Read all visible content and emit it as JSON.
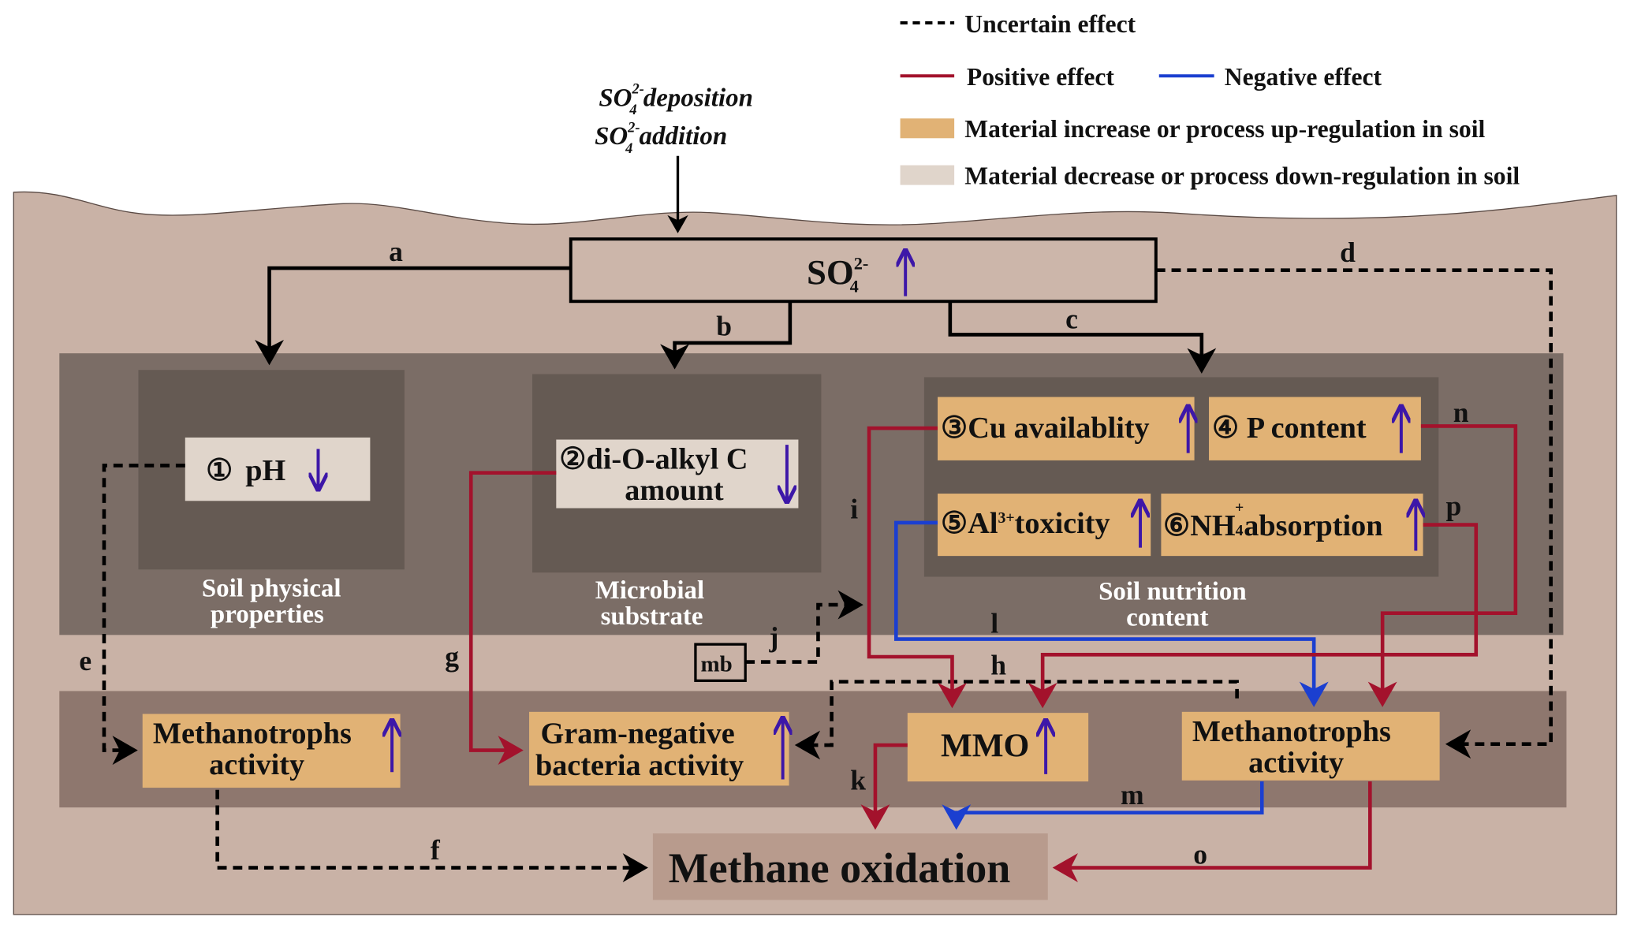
{
  "legend": {
    "uncertain": "Uncertain effect",
    "positive": "Positive effect",
    "negative": "Negative effect",
    "increase": "Material increase or process up-regulation in soil",
    "decrease": "Material decrease or process down-regulation in soil"
  },
  "inputs": {
    "so4": "SO",
    "sub": "4",
    "sup": "2-",
    "deposition": " deposition",
    "addition": " addition"
  },
  "so4_box": {
    "main": "SO",
    "sub": "4",
    "sup": "2-",
    "trend": "up"
  },
  "groups": {
    "physical": [
      "Soil physical",
      "properties"
    ],
    "substrate": [
      "Microbial",
      "substrate"
    ],
    "nutrition": [
      "Soil nutrition",
      "content"
    ]
  },
  "factors": {
    "ph": {
      "num": "①",
      "label": "pH",
      "trend": "down"
    },
    "alkyl": {
      "line1": "②di-O-alkyl C",
      "line2": "amount",
      "trend": "down"
    },
    "cu": {
      "label": "③Cu availablity",
      "trend": "up"
    },
    "p": {
      "label": "④ P content",
      "trend": "up"
    },
    "al": {
      "pre": "⑤Al",
      "sup": "3+",
      "post": "toxicity",
      "trend": "up"
    },
    "nh4": {
      "pre": "⑥NH",
      "sub": "4",
      "sup": "+",
      "post": "absorption",
      "trend": "up"
    }
  },
  "responses": {
    "methanotrophs_left": [
      "Methanotrophs",
      "activity"
    ],
    "gram_negative": [
      "Gram-negative",
      "bacteria activity"
    ],
    "mmo": "MMO",
    "methanotrophs_right": [
      "Methanotrophs",
      "activity"
    ],
    "methane_oxidation": "Methane oxidation",
    "mb": "mb"
  },
  "path_labels": [
    "a",
    "b",
    "c",
    "d",
    "e",
    "f",
    "g",
    "h",
    "i",
    "j",
    "k",
    "l",
    "m",
    "n",
    "o",
    "p"
  ],
  "colors": {
    "positive": "#a3122c",
    "negative": "#1b3fd0",
    "trend_arrow": "#3d17a8",
    "increase_fill": "#e1b275",
    "decrease_fill": "#e0d5cb",
    "soil": "#c9b2a6",
    "band": "#7b6d66",
    "inner": "#655a53",
    "lower_band": "#8e776e",
    "methane_box": "#b89b8d"
  }
}
